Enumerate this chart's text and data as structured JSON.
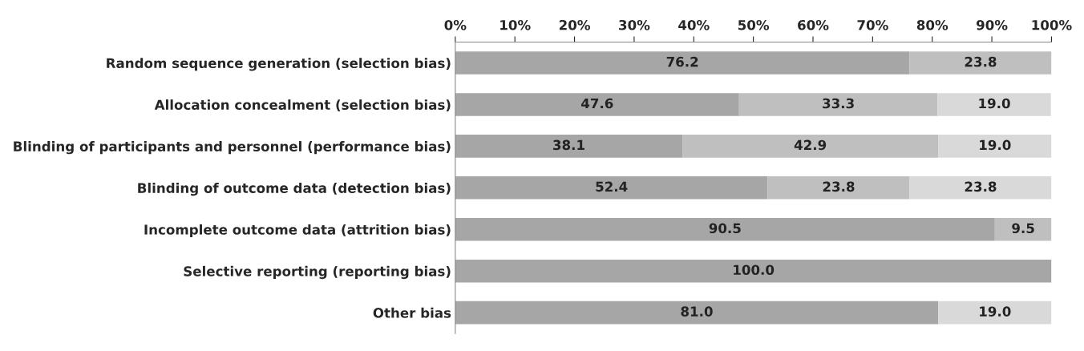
{
  "chart_data": {
    "type": "bar",
    "orientation": "horizontal",
    "stacked": true,
    "categories": [
      "Random sequence generation (selection bias)",
      "Allocation concealment (selection bias)",
      "Blinding of participants and personnel (performance bias)",
      "Blinding of outcome data (detection bias)",
      "Incomplete outcome data (attrition bias)",
      "Selective reporting (reporting bias)",
      "Other bias"
    ],
    "series": [
      {
        "color": "#a6a6a6",
        "values": [
          76.2,
          47.6,
          38.1,
          52.4,
          90.5,
          100,
          81
        ],
        "value_labels": [
          "76.2",
          "47.6",
          "38.1",
          "52.4",
          "90.5",
          "100.0",
          "81.0"
        ]
      },
      {
        "color": "#bfbfbf",
        "values": [
          23.8,
          33.3,
          42.9,
          23.8,
          9.5,
          null,
          null
        ],
        "value_labels": [
          "23.8",
          "33.3",
          "42.9",
          "23.8",
          "9.5",
          null,
          null
        ]
      },
      {
        "color": "#d9d9d9",
        "values": [
          null,
          19,
          19,
          23.8,
          null,
          null,
          19
        ],
        "value_labels": [
          null,
          "19.0",
          "19.0",
          "23.8",
          null,
          null,
          "19.0"
        ]
      }
    ],
    "xlim": [
      0,
      100
    ],
    "xticks": [
      {
        "value": 0,
        "label": "0%"
      },
      {
        "value": 10,
        "label": "10%"
      },
      {
        "value": 20,
        "label": "20%"
      },
      {
        "value": 30,
        "label": "30%"
      },
      {
        "value": 40,
        "label": "40%"
      },
      {
        "value": 50,
        "label": "50%"
      },
      {
        "value": 60,
        "label": "60%"
      },
      {
        "value": 70,
        "label": "70%"
      },
      {
        "value": 80,
        "label": "80%"
      },
      {
        "value": 90,
        "label": "90%"
      },
      {
        "value": 100,
        "label": "100%"
      }
    ],
    "grid": false,
    "legend": false
  }
}
